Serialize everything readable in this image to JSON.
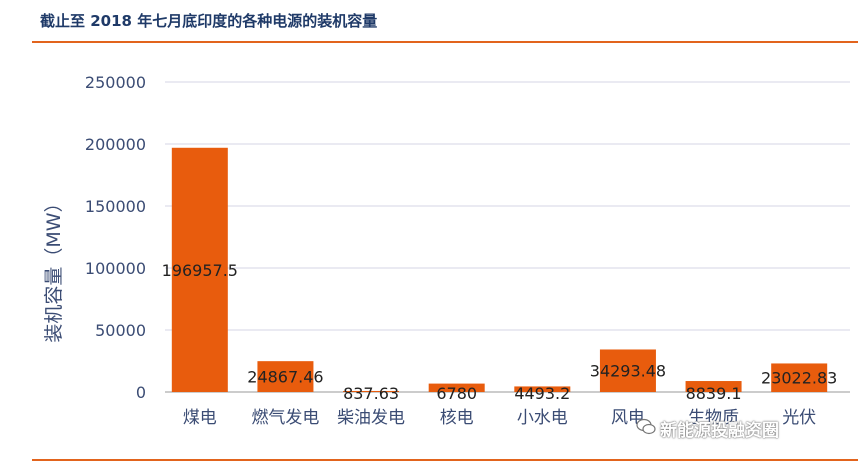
{
  "header": {
    "title": "截止至 2018 年七月底印度的各种电源的装机容量"
  },
  "watermark": {
    "text": "新能源投融资圈",
    "icon": "wechat-icon"
  },
  "colors": {
    "bar": "#e85c0d",
    "rule": "#e2641d",
    "text": "#3b4c74"
  },
  "chart_data": {
    "type": "bar",
    "title": "截止至 2018 年七月底印度的各种电源的装机容量",
    "xlabel": "",
    "ylabel": "装机容量（MW）",
    "categories": [
      "煤电",
      "燃气发电",
      "柴油发电",
      "核电",
      "小水电",
      "风电",
      "生物质",
      "光伏"
    ],
    "values": [
      196957.5,
      24867.46,
      837.63,
      6780,
      4493.2,
      34293.48,
      8839.1,
      23022.83
    ],
    "data_labels": [
      "196957.5",
      "24867.46",
      "837.63",
      "6780",
      "4493.2",
      "34293.48",
      "8839.1",
      "23022.83"
    ],
    "ylim": [
      0,
      250000
    ],
    "yticks": [
      "0",
      "50000",
      "100000",
      "150000",
      "200000",
      "250000"
    ],
    "grid": true,
    "legend": "none"
  }
}
